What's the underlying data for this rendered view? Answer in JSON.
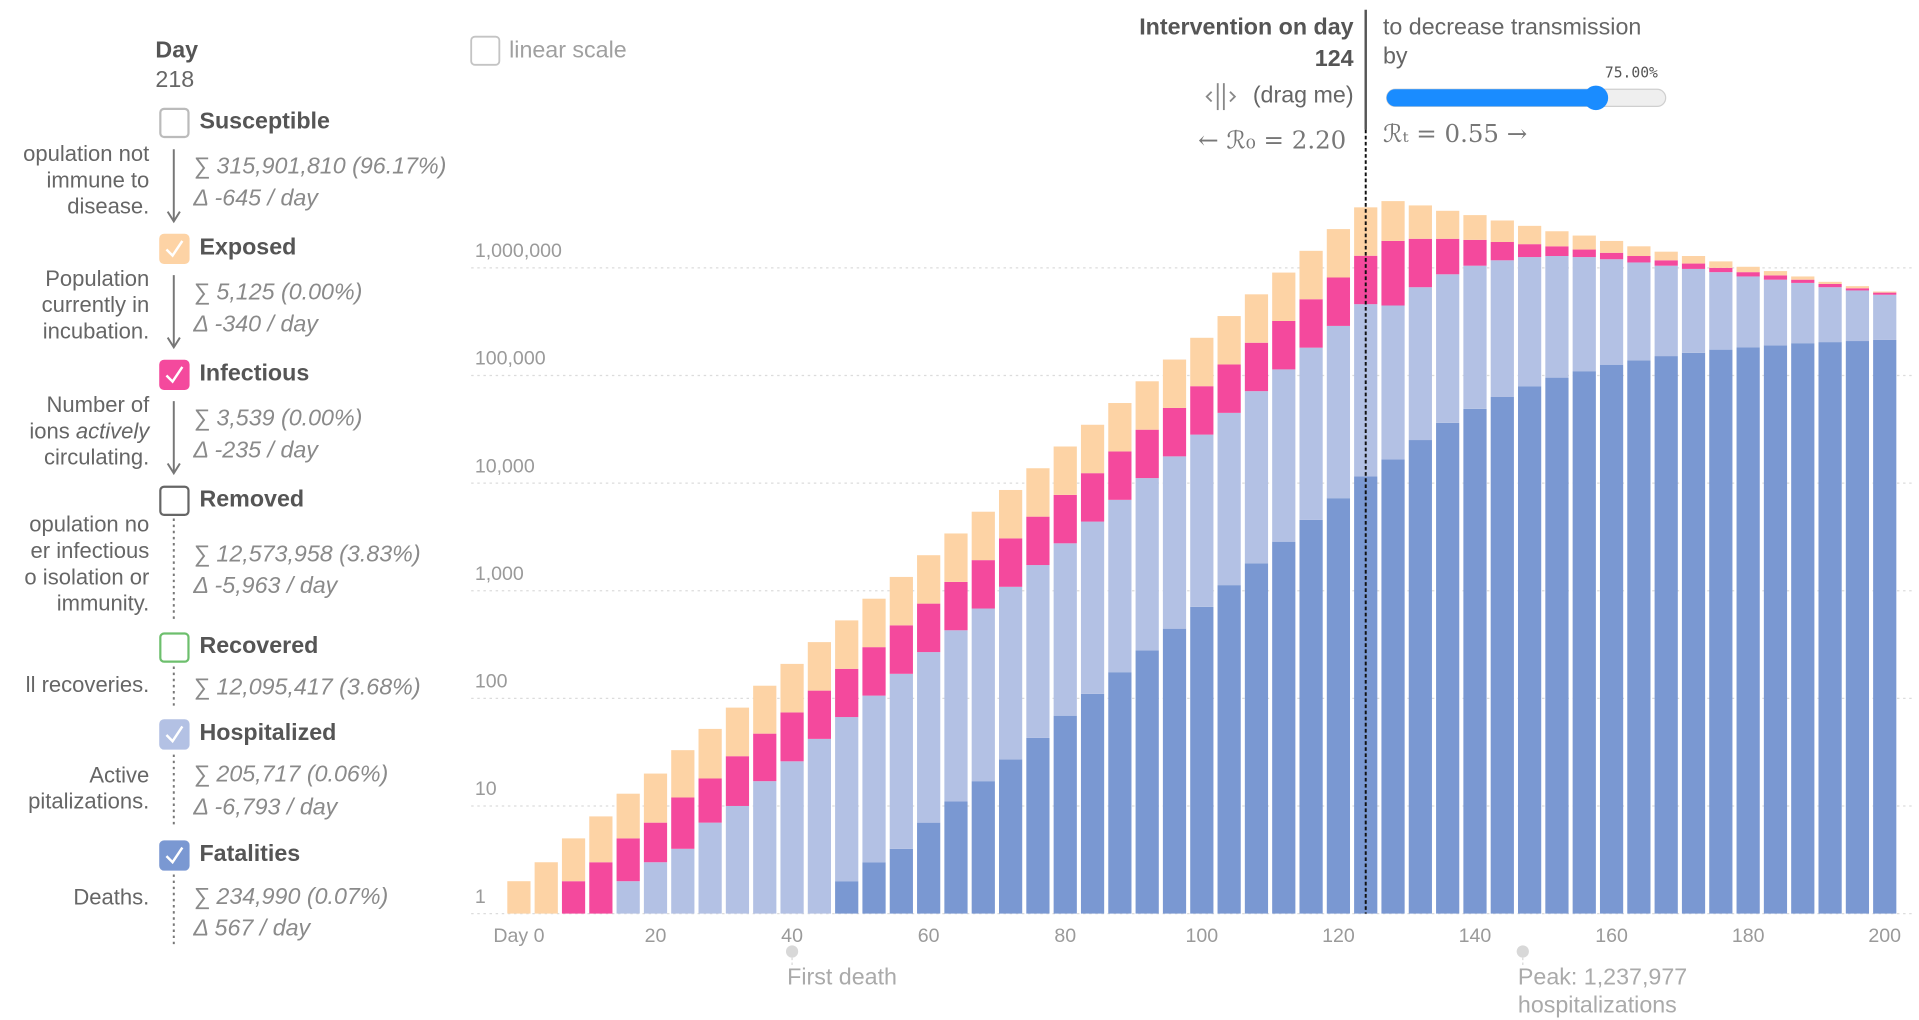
{
  "chart_data": {
    "type": "bar",
    "stacked": true,
    "log_scale": true,
    "grid": true,
    "day_label": "Day",
    "day": 218,
    "x": [
      0,
      4,
      8,
      12,
      16,
      20,
      24,
      28,
      32,
      36,
      40,
      44,
      48,
      52,
      56,
      60,
      64,
      68,
      72,
      76,
      80,
      84,
      88,
      92,
      96,
      100,
      104,
      108,
      112,
      116,
      120,
      124,
      128,
      132,
      136,
      140,
      144,
      148,
      152,
      156,
      160,
      164,
      168,
      172,
      176,
      180,
      184,
      188,
      192,
      196,
      200
    ],
    "xlim": [
      0,
      200
    ],
    "xticks": [
      {
        "value": 0,
        "label": "Day 0"
      },
      20,
      40,
      60,
      80,
      100,
      120,
      140,
      160,
      180,
      200
    ],
    "ylim": [
      1,
      10000000
    ],
    "yticks": [
      1,
      10,
      100,
      {
        "value": 1000,
        "label": "1,000"
      },
      {
        "value": 10000,
        "label": "10,000"
      },
      {
        "value": 100000,
        "label": "100,000"
      },
      {
        "value": 1000000,
        "label": "1,000,000"
      }
    ],
    "series": [
      {
        "name": "Susceptible",
        "color": "#bbbbbb",
        "checked": false,
        "description": [
          "opulation not",
          "immune to",
          "disease."
        ],
        "sum": "∑ 315,901,810 (96.17%)",
        "delta": "Δ -645 / day"
      },
      {
        "name": "Exposed",
        "color": "#fdd3a5",
        "checked": true,
        "description": [
          "Population",
          "currently in",
          "incubation."
        ],
        "sum": "∑ 5,125 (0.00%)",
        "delta": "Δ -340 / day",
        "values": [
          2,
          2,
          3,
          5,
          8,
          13,
          21,
          34,
          53,
          84,
          135,
          215,
          342,
          544,
          866,
          1379,
          2196,
          3496,
          5566,
          8862,
          14113,
          22465,
          35772,
          56960,
          90687,
          144415,
          229942,
          366037,
          582822,
          928155,
          1477695,
          2352960,
          2391000,
          1940000,
          1526000,
          1270000,
          1016000,
          795000,
          603000,
          516000,
          398000,
          297000,
          238000,
          192000,
          148000,
          111000,
          82200,
          55600,
          33400,
          30400,
          13800
        ]
      },
      {
        "name": "Infectious",
        "color": "#f4499d",
        "checked": true,
        "description": [
          "Number of",
          [
            "ions",
            "actively"
          ],
          "circulating."
        ],
        "sum": "∑ 3,539 (0.00%)",
        "delta": "Δ -235 / day",
        "values": [
          0,
          1,
          2,
          2,
          3,
          4,
          8,
          11,
          19,
          30,
          48,
          76,
          121,
          193,
          308,
          490,
          779,
          1241,
          1977,
          3147,
          5010,
          7976,
          12700,
          20223,
          32197,
          51274,
          81639,
          129958,
          206924,
          329531,
          524639,
          835392,
          1331300,
          1201300,
          991000,
          773000,
          563000,
          401000,
          297000,
          220000,
          178000,
          166000,
          128000,
          118800,
          88000,
          80200,
          74900,
          51800,
          47200,
          29100,
          26500
        ]
      },
      {
        "name": "Removed",
        "color": "#666666",
        "checked": false,
        "description": [
          "opulation no",
          "er infectious",
          "o isolation or",
          "immunity."
        ],
        "sum": "∑ 12,573,958 (3.83%)",
        "delta": "Δ -5,963 / day"
      },
      {
        "name": "Recovered",
        "color": "#6dbf6d",
        "checked": false,
        "description": [
          "ll recoveries."
        ],
        "sum": "∑ 12,095,417 (3.68%)"
      },
      {
        "name": "Hospitalized",
        "color": "#b3c1e4",
        "checked": true,
        "description": [
          "Active",
          "pitalizations."
        ],
        "sum": "∑ 205,717 (0.06%)",
        "delta": "Δ -6,793 / day",
        "values": [
          0,
          0,
          0,
          1,
          2,
          3,
          4,
          7,
          10,
          17,
          26,
          41,
          65,
          103,
          165,
          262,
          418,
          666,
          1060,
          1688,
          2688,
          4279,
          6813,
          10848,
          17272,
          27503,
          43792,
          69712,
          110999,
          176767,
          281426,
          448120,
          430100,
          635580,
          834690,
          998020,
          1111900,
          1179570,
          1192500,
          1149400,
          1076100,
          984000,
          895600,
          815000,
          738200,
          649800,
          585700,
          524900,
          456500,
          407700,
          348500
        ]
      },
      {
        "name": "Fatalities",
        "color": "#7a98d2",
        "checked": true,
        "description": [
          "Deaths."
        ],
        "sum": "∑ 234,990 (0.07%)",
        "delta": "Δ 567 / day",
        "values": [
          0,
          0,
          0,
          0,
          0,
          0,
          0,
          0,
          0,
          0,
          0,
          1,
          2,
          3,
          4,
          7,
          11,
          17,
          27,
          43,
          69,
          110,
          175,
          279,
          444,
          708,
          1127,
          1793,
          2855,
          4547,
          7240,
          11528,
          16600,
          25120,
          36310,
          48980,
          63100,
          79430,
          95500,
          109600,
          125900,
          138000,
          151400,
          162200,
          173800,
          182000,
          190500,
          199500,
          204200,
          208900,
          213800
        ]
      }
    ],
    "annotations": [
      {
        "x": 40,
        "text": [
          "First death"
        ]
      },
      {
        "x": 147,
        "text": [
          "Peak: 1,237,977",
          "hospitalizations"
        ]
      }
    ]
  },
  "controls": {
    "linear_scale_label": "linear scale",
    "linear_scale": false,
    "intervention_title": "Intervention on day",
    "intervention_day": 124,
    "drag_hint": "(drag me)",
    "r0": "← ℛ₀ = 2.20",
    "decrease_text": [
      "to decrease transmission",
      "by"
    ],
    "transmission_decrease": {
      "value": 75,
      "label": "75.00%"
    },
    "rt": "ℛₜ = 0.55 →"
  }
}
